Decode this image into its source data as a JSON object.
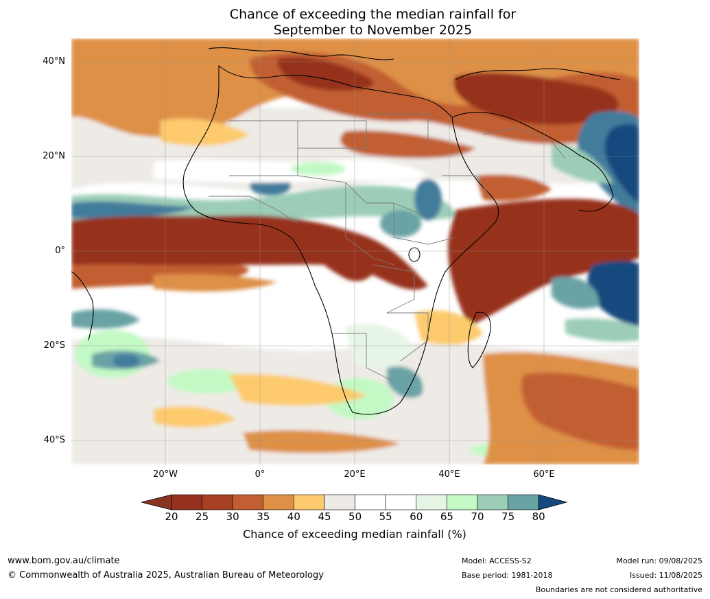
{
  "title_line1": "Chance of exceeding the median rainfall for",
  "title_line2": "September to November 2025",
  "lat_labels": [
    "40°N",
    "20°N",
    "0°",
    "20°S",
    "40°S"
  ],
  "lon_labels": [
    "20°W",
    "0°",
    "20°E",
    "40°E",
    "60°E"
  ],
  "colorbar": {
    "ticks": [
      "20",
      "25",
      "30",
      "35",
      "40",
      "45",
      "50",
      "55",
      "60",
      "65",
      "70",
      "75",
      "80"
    ],
    "colors": [
      "#96311f",
      "#a84024",
      "#c25f32",
      "#de9046",
      "#fdcb6d",
      "#eeebe7",
      "#ffffff",
      "#ffffff",
      "#e7f5e7",
      "#c3f9c4",
      "#9ccdb7",
      "#6aa3a5",
      "#437c9b"
    ],
    "under_color": "#8a3420",
    "over_color": "#13497e",
    "label": "Chance of exceeding median rainfall (%)"
  },
  "footer": {
    "website": "www.bom.gov.au/climate",
    "copyright": "© Commonwealth of Australia 2025, Australian Bureau of Meteorology",
    "model": "Model: ACCESS-S2",
    "base_period": "Base period: 1981-2018",
    "model_run": "Model run: 09/08/2025",
    "issued": "Issued: 11/08/2025",
    "disclaimer": "Boundaries are not considered authoritative"
  }
}
